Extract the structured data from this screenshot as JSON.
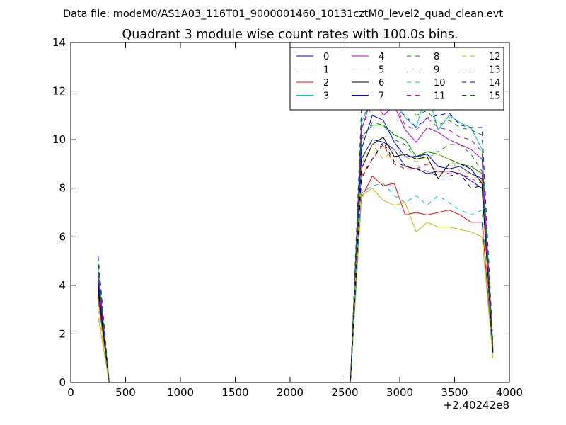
{
  "chart_data": {
    "type": "line",
    "suptitle": "Data file: modeM0/AS1A03_116T01_9000001460_10131cztM0_level2_quad_clean.evt",
    "title": "Quadrant 3 module wise count rates with 100.0s bins.",
    "xlabel": "",
    "ylabel": "",
    "x_offset_label": "+2.40242e8",
    "xlim": [
      0,
      4000
    ],
    "ylim": [
      0,
      14
    ],
    "xticks": [
      0,
      500,
      1000,
      1500,
      2000,
      2500,
      3000,
      3500,
      4000
    ],
    "yticks": [
      0,
      2,
      4,
      6,
      8,
      10,
      12,
      14
    ],
    "legend_position": "upper-right",
    "legend_columns": 4,
    "x": [
      250,
      350,
      450,
      550,
      650,
      750,
      850,
      950,
      1050,
      1150,
      1250,
      1350,
      1450,
      1550,
      1650,
      1750,
      1850,
      1950,
      2050,
      2150,
      2250,
      2350,
      2450,
      2550,
      2650,
      2750,
      2850,
      2950,
      3050,
      3150,
      3250,
      3350,
      3450,
      3550,
      3650,
      3750,
      3850
    ],
    "series": [
      {
        "name": "0",
        "color": "#0000ff",
        "dash": "solid",
        "values": [
          4.3,
          0,
          0,
          0,
          0,
          0,
          0,
          0,
          0,
          0,
          0,
          0,
          0,
          0,
          0,
          0,
          0,
          0,
          0,
          0,
          0,
          0,
          0,
          0,
          9.2,
          10.0,
          9.9,
          9.6,
          8.9,
          8.8,
          8.6,
          8.7,
          8.7,
          8.6,
          8.3,
          8.0,
          1.3
        ]
      },
      {
        "name": "1",
        "color": "#008000",
        "dash": "solid",
        "values": [
          4.6,
          0,
          0,
          0,
          0,
          0,
          0,
          0,
          0,
          0,
          0,
          0,
          0,
          0,
          0,
          0,
          0,
          0,
          0,
          0,
          0,
          0,
          0,
          0,
          10.1,
          10.6,
          10.6,
          10.2,
          10.0,
          9.3,
          9.5,
          9.4,
          9.2,
          9.0,
          8.9,
          8.6,
          1.4
        ]
      },
      {
        "name": "2",
        "color": "#ff0000",
        "dash": "solid",
        "values": [
          3.5,
          0,
          0,
          0,
          0,
          0,
          0,
          0,
          0,
          0,
          0,
          0,
          0,
          0,
          0,
          0,
          0,
          0,
          0,
          0,
          0,
          0,
          0,
          0,
          7.6,
          8.5,
          8.1,
          8.2,
          6.9,
          7.0,
          6.9,
          7.0,
          7.1,
          6.9,
          6.6,
          6.6,
          1.2
        ]
      },
      {
        "name": "3",
        "color": "#00bfbf",
        "dash": "solid",
        "values": [
          4.0,
          0,
          0,
          0,
          0,
          0,
          0,
          0,
          0,
          0,
          0,
          0,
          0,
          0,
          0,
          0,
          0,
          0,
          0,
          0,
          0,
          0,
          0,
          0,
          10.7,
          11.7,
          11.5,
          11.7,
          10.9,
          10.5,
          12.0,
          10.4,
          11.0,
          10.7,
          10.5,
          9.6,
          1.5
        ]
      },
      {
        "name": "4",
        "color": "#bf00bf",
        "dash": "solid",
        "values": [
          4.2,
          0,
          0,
          0,
          0,
          0,
          0,
          0,
          0,
          0,
          0,
          0,
          0,
          0,
          0,
          0,
          0,
          0,
          0,
          0,
          0,
          0,
          0,
          0,
          10.4,
          11.8,
          11.0,
          11.4,
          10.4,
          9.9,
          10.5,
          10.3,
          10.0,
          9.8,
          9.6,
          9.2,
          1.4
        ]
      },
      {
        "name": "5",
        "color": "#bfbf00",
        "dash": "solid",
        "values": [
          2.7,
          0,
          0,
          0,
          0,
          0,
          0,
          0,
          0,
          0,
          0,
          0,
          0,
          0,
          0,
          0,
          0,
          0,
          0,
          0,
          0,
          0,
          0,
          0,
          7.7,
          8.0,
          7.5,
          7.3,
          7.4,
          6.2,
          6.6,
          6.4,
          6.4,
          6.3,
          6.2,
          6.0,
          1.0
        ]
      },
      {
        "name": "6",
        "color": "#000000",
        "dash": "solid",
        "values": [
          3.8,
          0,
          0,
          0,
          0,
          0,
          0,
          0,
          0,
          0,
          0,
          0,
          0,
          0,
          0,
          0,
          0,
          0,
          0,
          0,
          0,
          0,
          0,
          0,
          8.8,
          9.8,
          10.1,
          9.3,
          9.4,
          9.2,
          9.3,
          8.4,
          9.0,
          9.0,
          8.8,
          8.2,
          1.3
        ]
      },
      {
        "name": "7",
        "color": "#0000ff",
        "dash": "solid",
        "values": [
          4.1,
          0,
          0,
          0,
          0,
          0,
          0,
          0,
          0,
          0,
          0,
          0,
          0,
          0,
          0,
          0,
          0,
          0,
          0,
          0,
          0,
          0,
          0,
          0,
          9.6,
          11.0,
          10.8,
          9.9,
          9.3,
          9.3,
          9.4,
          8.9,
          8.8,
          8.9,
          8.6,
          8.4,
          1.3
        ]
      },
      {
        "name": "8",
        "color": "#008000",
        "dash": "dashed",
        "values": [
          4.9,
          0,
          0,
          0,
          0,
          0,
          0,
          0,
          0,
          0,
          0,
          0,
          0,
          0,
          0,
          0,
          0,
          0,
          0,
          0,
          0,
          0,
          0,
          0,
          10.0,
          10.7,
          10.6,
          10.0,
          9.8,
          9.2,
          9.5,
          9.5,
          9.8,
          9.8,
          9.4,
          8.7,
          1.4
        ]
      },
      {
        "name": "9",
        "color": "#ff0000",
        "dash": "dashed",
        "values": [
          3.6,
          0,
          0,
          0,
          0,
          0,
          0,
          0,
          0,
          0,
          0,
          0,
          0,
          0,
          0,
          0,
          0,
          0,
          0,
          0,
          0,
          0,
          0,
          0,
          8.5,
          9.2,
          9.8,
          9.0,
          8.8,
          8.8,
          9.0,
          8.7,
          8.6,
          8.6,
          8.4,
          8.2,
          1.2
        ]
      },
      {
        "name": "10",
        "color": "#00bfbf",
        "dash": "dashed",
        "values": [
          3.3,
          0,
          0,
          0,
          0,
          0,
          0,
          0,
          0,
          0,
          0,
          0,
          0,
          0,
          0,
          0,
          0,
          0,
          0,
          0,
          0,
          0,
          0,
          0,
          7.8,
          8.1,
          8.2,
          7.7,
          7.4,
          7.7,
          7.3,
          7.7,
          7.4,
          7.1,
          6.9,
          7.1,
          1.2
        ]
      },
      {
        "name": "11",
        "color": "#bf00bf",
        "dash": "dashed",
        "values": [
          4.4,
          0,
          0,
          0,
          0,
          0,
          0,
          0,
          0,
          0,
          0,
          0,
          0,
          0,
          0,
          0,
          0,
          0,
          0,
          0,
          0,
          0,
          0,
          0,
          10.5,
          11.4,
          11.6,
          11.5,
          10.6,
          10.4,
          10.9,
          10.5,
          10.4,
          10.1,
          10.0,
          9.5,
          1.4
        ]
      },
      {
        "name": "12",
        "color": "#bfbf00",
        "dash": "dashed",
        "values": [
          3.0,
          0,
          0,
          0,
          0,
          0,
          0,
          0,
          0,
          0,
          0,
          0,
          0,
          0,
          0,
          0,
          0,
          0,
          0,
          0,
          0,
          0,
          0,
          0,
          9.0,
          9.8,
          9.2,
          9.6,
          9.3,
          9.1,
          9.3,
          9.4,
          9.2,
          8.7,
          8.6,
          8.3,
          1.2
        ]
      },
      {
        "name": "13",
        "color": "#000000",
        "dash": "dashed",
        "values": [
          3.9,
          0,
          0,
          0,
          0,
          0,
          0,
          0,
          0,
          0,
          0,
          0,
          0,
          0,
          0,
          0,
          0,
          0,
          0,
          0,
          0,
          0,
          0,
          0,
          8.4,
          9.2,
          9.9,
          9.1,
          8.9,
          8.8,
          8.7,
          8.5,
          8.5,
          8.6,
          8.0,
          8.1,
          1.2
        ]
      },
      {
        "name": "14",
        "color": "#0000ff",
        "dash": "dashed",
        "values": [
          5.2,
          0,
          0,
          0,
          0,
          0,
          0,
          0,
          0,
          0,
          0,
          0,
          0,
          0,
          0,
          0,
          0,
          0,
          0,
          0,
          0,
          0,
          0,
          0,
          11.2,
          11.7,
          11.5,
          11.3,
          11.0,
          10.5,
          10.9,
          11.0,
          11.1,
          10.6,
          10.5,
          10.5,
          1.6
        ]
      },
      {
        "name": "15",
        "color": "#008000",
        "dash": "dashed",
        "values": [
          4.8,
          0,
          0,
          0,
          0,
          0,
          0,
          0,
          0,
          0,
          0,
          0,
          0,
          0,
          0,
          0,
          0,
          0,
          0,
          0,
          0,
          0,
          0,
          0,
          10.9,
          11.5,
          11.6,
          11.9,
          11.7,
          11.0,
          11.2,
          10.6,
          10.8,
          10.5,
          10.4,
          10.2,
          1.5
        ]
      }
    ]
  }
}
